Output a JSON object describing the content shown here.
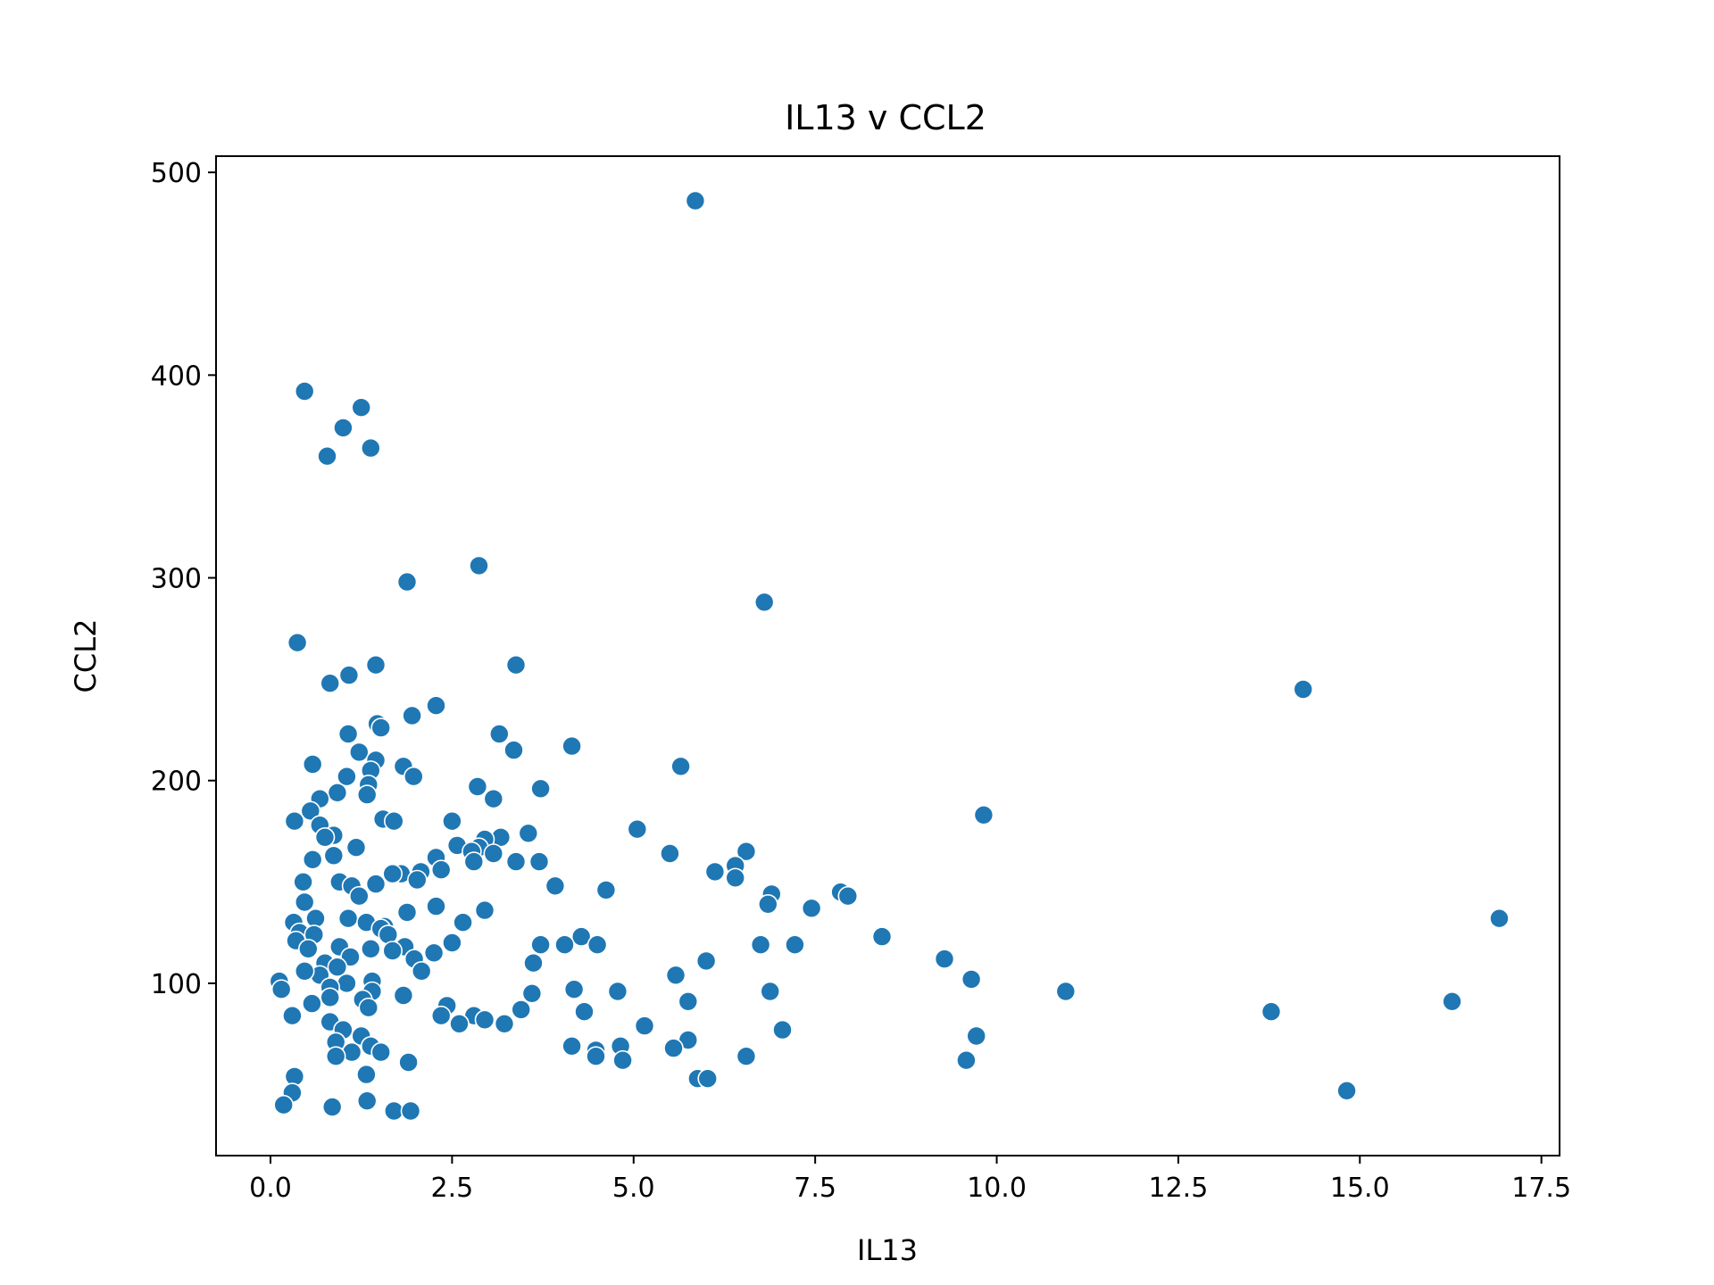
{
  "chart_data": {
    "type": "scatter",
    "title": "IL13 v CCL2",
    "xlabel": "IL13",
    "ylabel": "CCL2",
    "xlim": [
      -0.75,
      17.75
    ],
    "ylim": [
      15,
      508
    ],
    "xticks": [
      "0.0",
      "2.5",
      "5.0",
      "7.5",
      "10.0",
      "12.5",
      "15.0",
      "17.5"
    ],
    "yticks": [
      "100",
      "200",
      "300",
      "400",
      "500"
    ],
    "grid": false,
    "legend": "none",
    "color": "#1f77b4",
    "points": [
      [
        5.85,
        486
      ],
      [
        0.47,
        392
      ],
      [
        1.25,
        384
      ],
      [
        1.0,
        374
      ],
      [
        0.78,
        360
      ],
      [
        1.38,
        364
      ],
      [
        1.88,
        298
      ],
      [
        2.87,
        306
      ],
      [
        6.8,
        288
      ],
      [
        0.37,
        268
      ],
      [
        3.38,
        257
      ],
      [
        1.45,
        257
      ],
      [
        1.08,
        252
      ],
      [
        0.82,
        248
      ],
      [
        14.22,
        245
      ],
      [
        2.28,
        237
      ],
      [
        1.95,
        232
      ],
      [
        1.47,
        228
      ],
      [
        1.52,
        226
      ],
      [
        1.07,
        223
      ],
      [
        3.15,
        223
      ],
      [
        4.15,
        217
      ],
      [
        3.35,
        215
      ],
      [
        1.22,
        214
      ],
      [
        1.45,
        210
      ],
      [
        0.58,
        208
      ],
      [
        5.65,
        207
      ],
      [
        1.83,
        207
      ],
      [
        1.38,
        205
      ],
      [
        1.05,
        202
      ],
      [
        1.97,
        202
      ],
      [
        1.35,
        198
      ],
      [
        2.85,
        197
      ],
      [
        3.72,
        196
      ],
      [
        0.92,
        194
      ],
      [
        1.33,
        193
      ],
      [
        3.07,
        191
      ],
      [
        0.68,
        191
      ],
      [
        0.55,
        185
      ],
      [
        9.82,
        183
      ],
      [
        0.33,
        180
      ],
      [
        1.55,
        181
      ],
      [
        1.7,
        180
      ],
      [
        2.5,
        180
      ],
      [
        0.68,
        178
      ],
      [
        5.05,
        176
      ],
      [
        0.87,
        173
      ],
      [
        3.55,
        174
      ],
      [
        0.75,
        172
      ],
      [
        3.17,
        172
      ],
      [
        2.95,
        171
      ],
      [
        2.57,
        168
      ],
      [
        2.87,
        167
      ],
      [
        1.18,
        167
      ],
      [
        2.77,
        165
      ],
      [
        6.55,
        165
      ],
      [
        5.5,
        164
      ],
      [
        0.87,
        163
      ],
      [
        3.07,
        164
      ],
      [
        2.28,
        162
      ],
      [
        0.58,
        161
      ],
      [
        3.38,
        160
      ],
      [
        3.7,
        160
      ],
      [
        2.8,
        160
      ],
      [
        6.4,
        158
      ],
      [
        2.35,
        156
      ],
      [
        6.12,
        155
      ],
      [
        2.07,
        155
      ],
      [
        1.8,
        154
      ],
      [
        1.68,
        154
      ],
      [
        6.4,
        152
      ],
      [
        2.02,
        151
      ],
      [
        0.45,
        150
      ],
      [
        0.95,
        150
      ],
      [
        1.45,
        149
      ],
      [
        1.12,
        148
      ],
      [
        3.92,
        148
      ],
      [
        7.85,
        145
      ],
      [
        6.9,
        144
      ],
      [
        7.95,
        143
      ],
      [
        4.62,
        146
      ],
      [
        1.22,
        143
      ],
      [
        0.47,
        140
      ],
      [
        6.85,
        139
      ],
      [
        2.28,
        138
      ],
      [
        7.45,
        137
      ],
      [
        2.95,
        136
      ],
      [
        1.88,
        135
      ],
      [
        1.07,
        132
      ],
      [
        0.62,
        132
      ],
      [
        0.32,
        130
      ],
      [
        1.32,
        130
      ],
      [
        1.57,
        128
      ],
      [
        2.65,
        130
      ],
      [
        16.92,
        132
      ],
      [
        1.52,
        127
      ],
      [
        0.4,
        125
      ],
      [
        0.6,
        124
      ],
      [
        8.42,
        123
      ],
      [
        4.28,
        123
      ],
      [
        1.62,
        124
      ],
      [
        0.35,
        121
      ],
      [
        2.5,
        120
      ],
      [
        3.72,
        119
      ],
      [
        4.05,
        119
      ],
      [
        4.5,
        119
      ],
      [
        6.75,
        119
      ],
      [
        7.22,
        119
      ],
      [
        0.95,
        118
      ],
      [
        1.38,
        117
      ],
      [
        0.52,
        117
      ],
      [
        1.85,
        118
      ],
      [
        2.25,
        115
      ],
      [
        1.68,
        116
      ],
      [
        1.98,
        112
      ],
      [
        1.1,
        113
      ],
      [
        9.28,
        112
      ],
      [
        3.62,
        110
      ],
      [
        0.75,
        110
      ],
      [
        6.0,
        111
      ],
      [
        2.08,
        106
      ],
      [
        0.92,
        108
      ],
      [
        0.68,
        104
      ],
      [
        0.47,
        106
      ],
      [
        5.58,
        104
      ],
      [
        1.4,
        101
      ],
      [
        0.12,
        101
      ],
      [
        9.65,
        102
      ],
      [
        1.05,
        100
      ],
      [
        0.82,
        98
      ],
      [
        1.4,
        96
      ],
      [
        0.15,
        97
      ],
      [
        4.18,
        97
      ],
      [
        4.78,
        96
      ],
      [
        10.95,
        96
      ],
      [
        6.88,
        96
      ],
      [
        3.6,
        95
      ],
      [
        0.82,
        93
      ],
      [
        1.27,
        92
      ],
      [
        1.83,
        94
      ],
      [
        5.75,
        91
      ],
      [
        0.57,
        90
      ],
      [
        16.27,
        91
      ],
      [
        2.43,
        89
      ],
      [
        4.32,
        86
      ],
      [
        13.78,
        86
      ],
      [
        1.35,
        88
      ],
      [
        3.45,
        87
      ],
      [
        0.3,
        84
      ],
      [
        2.35,
        84
      ],
      [
        2.8,
        84
      ],
      [
        2.95,
        82
      ],
      [
        2.6,
        80
      ],
      [
        3.22,
        80
      ],
      [
        0.82,
        81
      ],
      [
        5.15,
        79
      ],
      [
        1.0,
        77
      ],
      [
        7.05,
        77
      ],
      [
        1.25,
        74
      ],
      [
        9.72,
        74
      ],
      [
        0.9,
        71
      ],
      [
        5.75,
        72
      ],
      [
        1.38,
        69
      ],
      [
        4.15,
        69
      ],
      [
        4.82,
        69
      ],
      [
        5.55,
        68
      ],
      [
        4.48,
        67
      ],
      [
        1.12,
        66
      ],
      [
        1.52,
        66
      ],
      [
        0.9,
        64
      ],
      [
        6.55,
        64
      ],
      [
        4.48,
        64
      ],
      [
        4.85,
        62
      ],
      [
        9.58,
        62
      ],
      [
        1.9,
        61
      ],
      [
        5.88,
        53
      ],
      [
        6.02,
        53
      ],
      [
        0.33,
        54
      ],
      [
        1.32,
        55
      ],
      [
        0.3,
        46
      ],
      [
        14.82,
        47
      ],
      [
        1.33,
        42
      ],
      [
        0.18,
        40
      ],
      [
        0.85,
        39
      ],
      [
        1.7,
        37
      ],
      [
        1.93,
        37
      ]
    ]
  }
}
